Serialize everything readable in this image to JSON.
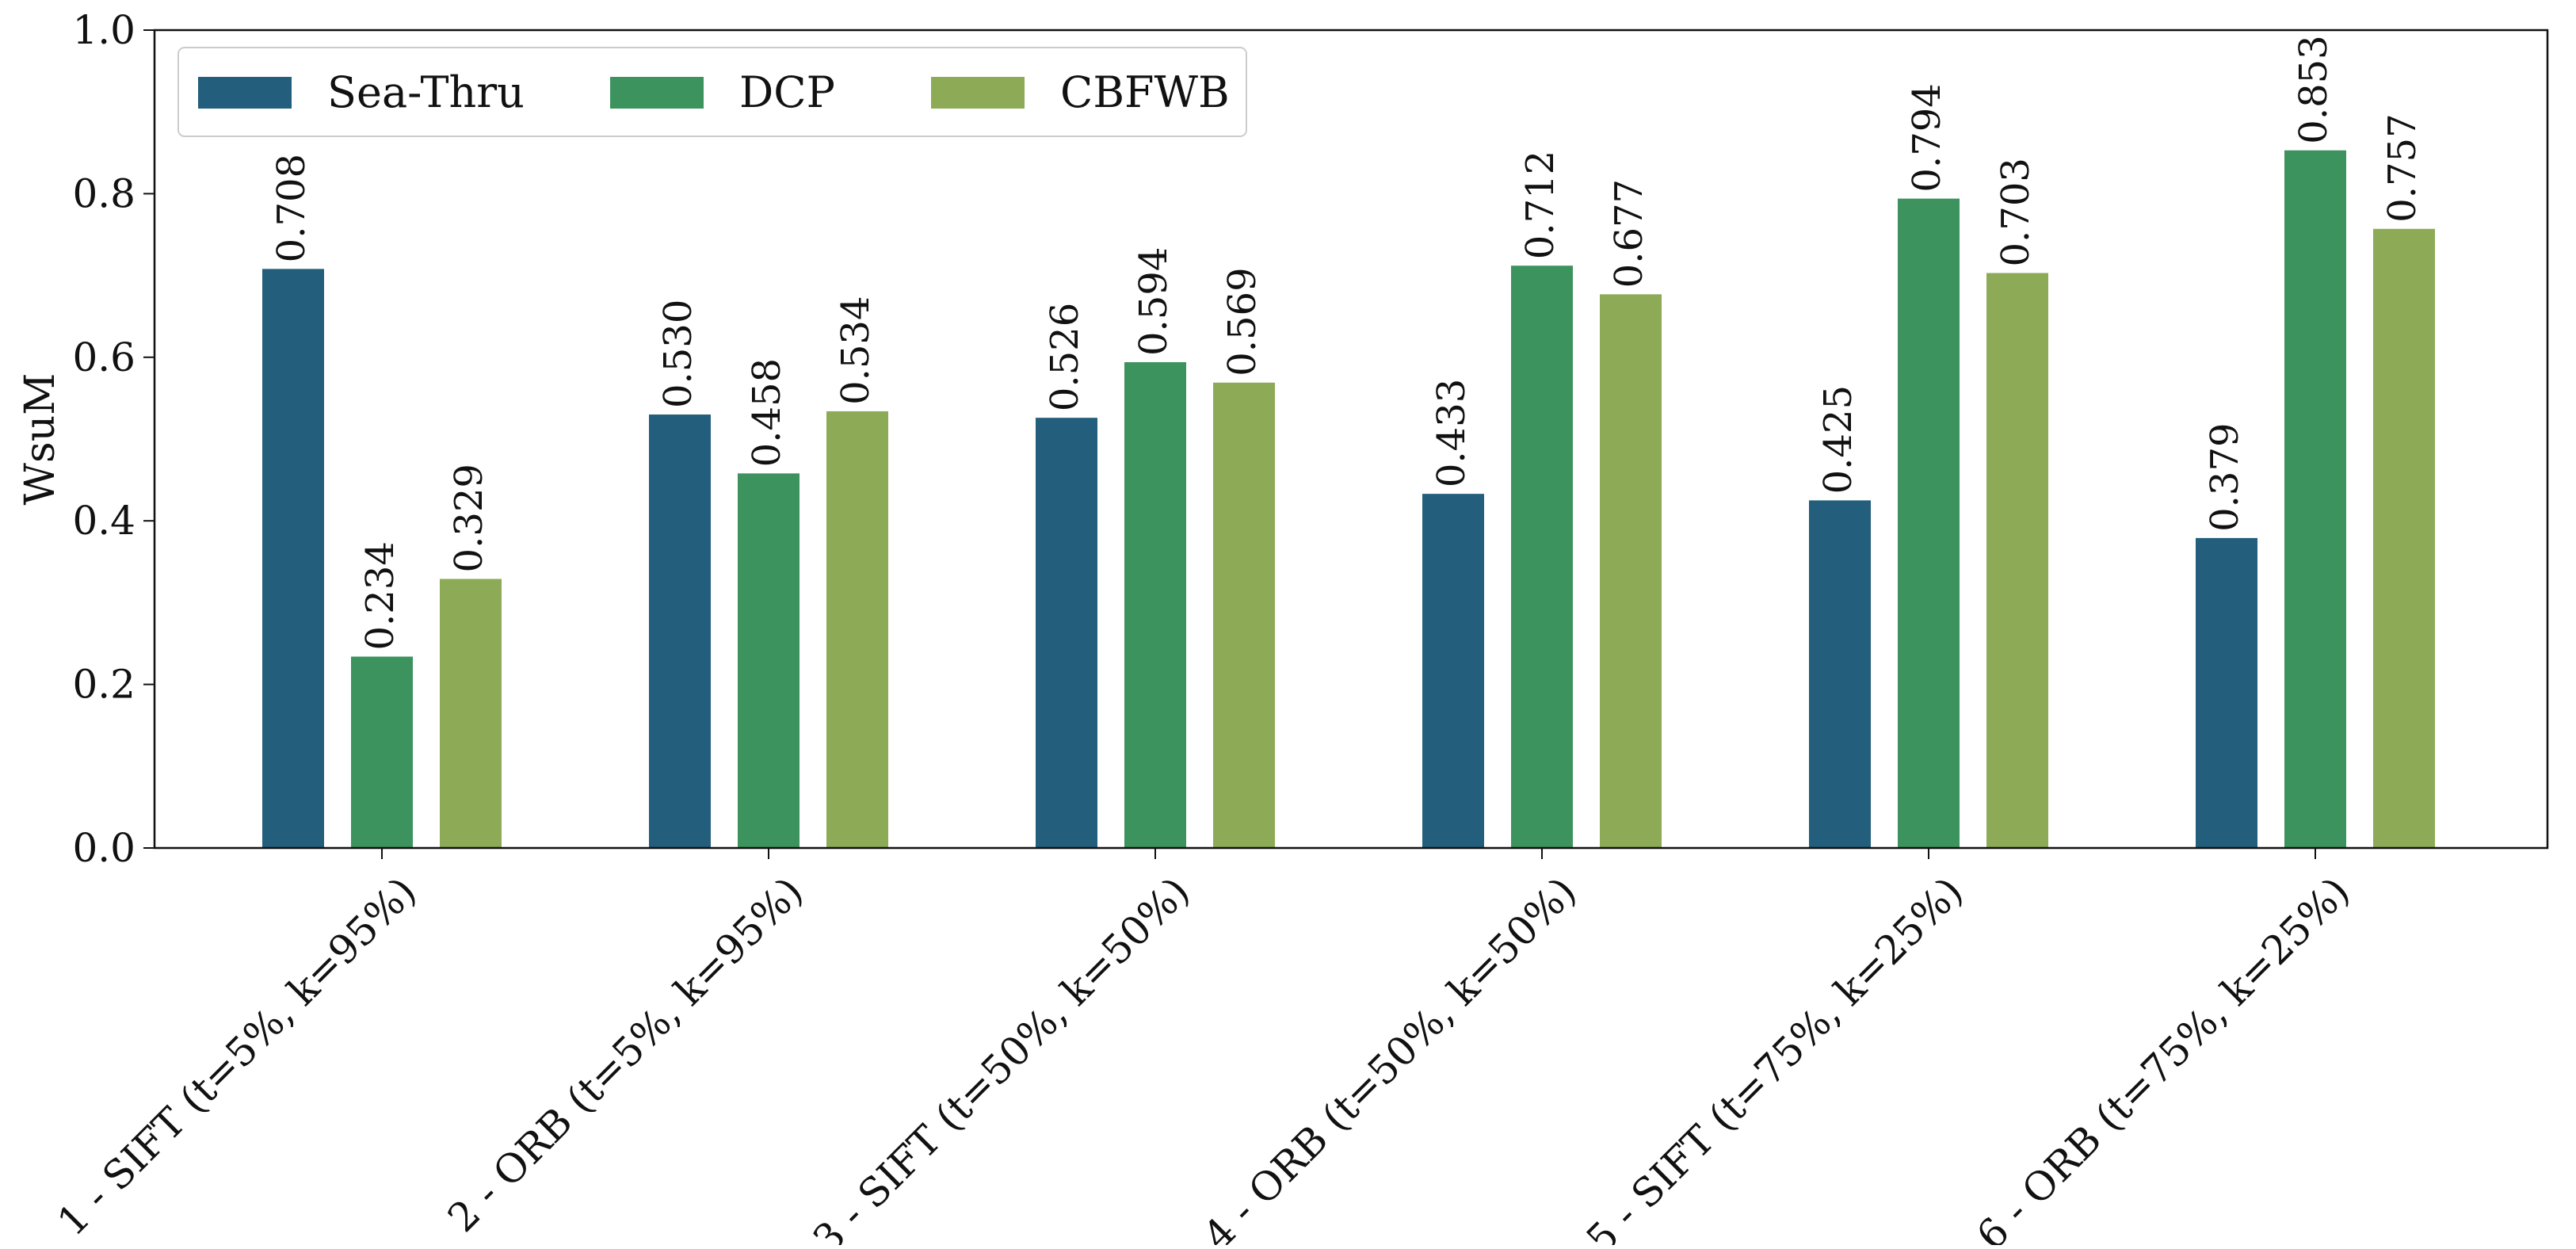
{
  "chart_data": {
    "type": "bar",
    "title": "",
    "xlabel": "",
    "ylabel": "WsuM",
    "ylim": [
      0,
      1.0
    ],
    "yticks": [
      "0.0",
      "0.2",
      "0.4",
      "0.6",
      "0.8",
      "1.0"
    ],
    "grid": false,
    "legend_position": "top-left",
    "categories": [
      "1 - SIFT (t=5%, k=95%)",
      "2 - ORB (t=5%, k=95%)",
      "3 - SIFT (t=50%, k=50%)",
      "4 - ORB  (t=50%, k=50%)",
      "5 - SIFT (t=75%, k=25%)",
      "6 - ORB (t=75%, k=25%)"
    ],
    "series": [
      {
        "name": "Sea-Thru",
        "color": "#235e7c",
        "values": [
          0.708,
          0.53,
          0.526,
          0.433,
          0.425,
          0.379
        ],
        "labels": [
          "0.708",
          "0.530",
          "0.526",
          "0.433",
          "0.425",
          "0.379"
        ]
      },
      {
        "name": "DCP",
        "color": "#3d935d",
        "values": [
          0.234,
          0.458,
          0.594,
          0.712,
          0.794,
          0.853
        ],
        "labels": [
          "0.234",
          "0.458",
          "0.594",
          "0.712",
          "0.794",
          "0.853"
        ]
      },
      {
        "name": "CBFWB",
        "color": "#8daa57",
        "values": [
          0.329,
          0.534,
          0.569,
          0.677,
          0.703,
          0.757
        ],
        "labels": [
          "0.329",
          "0.534",
          "0.569",
          "0.677",
          "0.703",
          "0.757"
        ]
      }
    ]
  }
}
